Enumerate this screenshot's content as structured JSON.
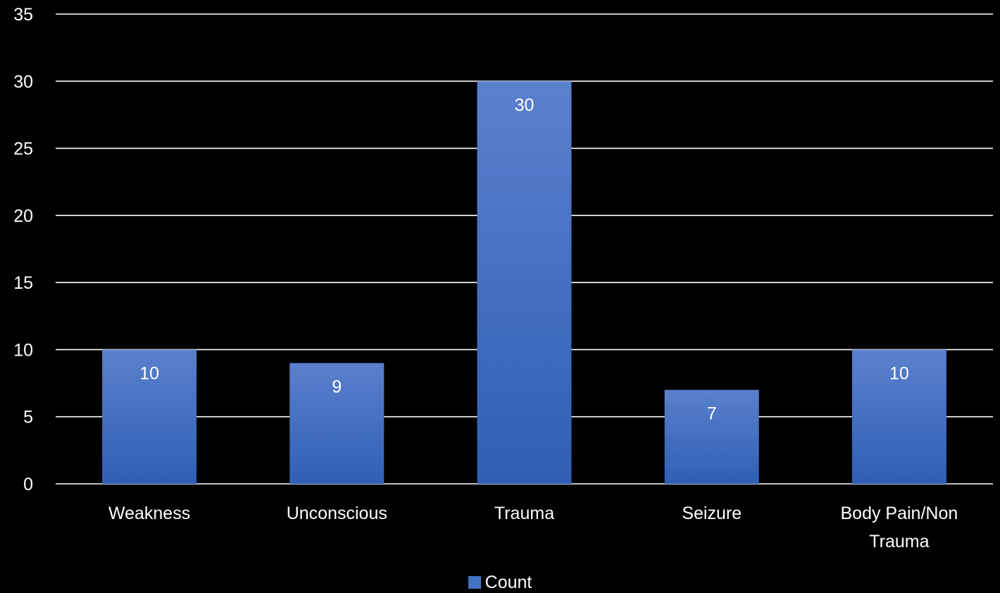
{
  "chart_data": {
    "type": "bar",
    "categories": [
      "Weakness",
      "Unconscious",
      "Trauma",
      "Seizure",
      "Body Pain/Non Trauma"
    ],
    "category_lines": [
      [
        "Weakness"
      ],
      [
        "Unconscious"
      ],
      [
        "Trauma"
      ],
      [
        "Seizure"
      ],
      [
        "Body Pain/Non",
        "Trauma"
      ]
    ],
    "series": [
      {
        "name": "Count",
        "values": [
          10,
          9,
          30,
          7,
          10
        ]
      }
    ],
    "title": "",
    "xlabel": "",
    "ylabel": "",
    "ylim": [
      0,
      35
    ],
    "yticks": [
      0,
      5,
      10,
      15,
      20,
      25,
      30,
      35
    ],
    "grid": true,
    "data_labels": true,
    "legend": "bottom-center",
    "colors": {
      "background": "#000000",
      "bar_top": "#5b80cd",
      "bar_bottom": "#2f5fb5",
      "text": "#ffffff",
      "grid": "#ffffff",
      "legend_swatch": "#4472c4"
    }
  },
  "legend": {
    "label": "Count",
    "swatch_icon": "square-swatch-icon"
  }
}
